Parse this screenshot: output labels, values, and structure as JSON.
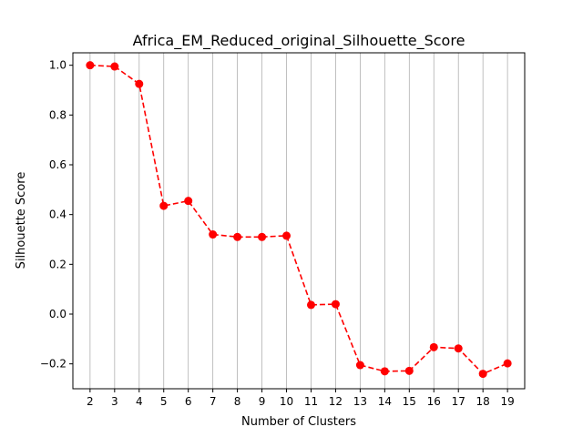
{
  "chart_data": {
    "type": "line",
    "title": "Africa_EM_Reduced_original_Silhouette_Score",
    "xlabel": "Number of Clusters",
    "ylabel": "Silhouette Score",
    "x": [
      2,
      3,
      4,
      5,
      6,
      7,
      8,
      9,
      10,
      11,
      12,
      13,
      14,
      15,
      16,
      17,
      18,
      19
    ],
    "x_tick_labels": [
      "2",
      "3",
      "4",
      "5",
      "6",
      "7",
      "8",
      "9",
      "10",
      "11",
      "12",
      "13",
      "14",
      "15",
      "16",
      "17",
      "18",
      "19"
    ],
    "y_ticks": [
      -0.2,
      0.0,
      0.2,
      0.4,
      0.6,
      0.8,
      1.0
    ],
    "y_tick_labels": [
      "−0.2",
      "0.0",
      "0.2",
      "0.4",
      "0.6",
      "0.8",
      "1.0"
    ],
    "series": [
      {
        "values": [
          1.0,
          0.995,
          0.925,
          0.435,
          0.455,
          0.32,
          0.31,
          0.31,
          0.315,
          0.037,
          0.04,
          -0.205,
          -0.23,
          -0.228,
          -0.133,
          -0.138,
          -0.24,
          -0.198
        ],
        "color": "#ff0000",
        "line_style": "dashed",
        "marker": "circle"
      }
    ],
    "xlim": [
      1.3,
      19.7
    ],
    "ylim": [
      -0.3,
      1.05
    ],
    "grid": "vertical",
    "grid_color": "#b0b0b0"
  }
}
